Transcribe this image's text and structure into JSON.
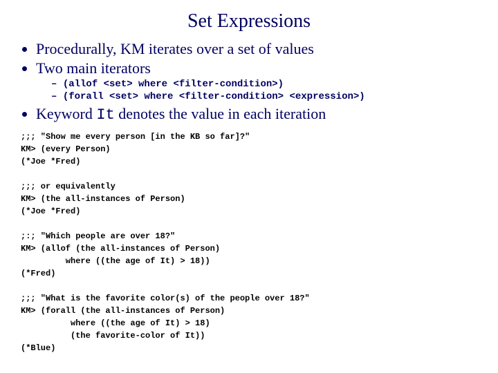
{
  "title": "Set Expressions",
  "bullets": {
    "b1": "Procedurally, KM iterates over a set of values",
    "b2": "Two main iterators",
    "sub1": "(allof <set> where <filter-condition>)",
    "sub2": "(forall <set> where <filter-condition> <expression>)",
    "b3_pre": "Keyword ",
    "b3_code": "It",
    "b3_post": " denotes the value in each iteration"
  },
  "code": ";;; \"Show me every person [in the KB so far]?\"\nKM> (every Person)\n(*Joe *Fred)\n\n;;; or equivalently\nKM> (the all-instances of Person)\n(*Joe *Fred)\n\n;:; \"Which people are over 18?\"\nKM> (allof (the all-instances of Person)\n         where ((the age of It) > 18))\n(*Fred)\n\n;;; \"What is the favorite color(s) of the people over 18?\"\nKM> (forall (the all-instances of Person)\n          where ((the age of It) > 18)\n          (the favorite-color of It))\n(*Blue)"
}
